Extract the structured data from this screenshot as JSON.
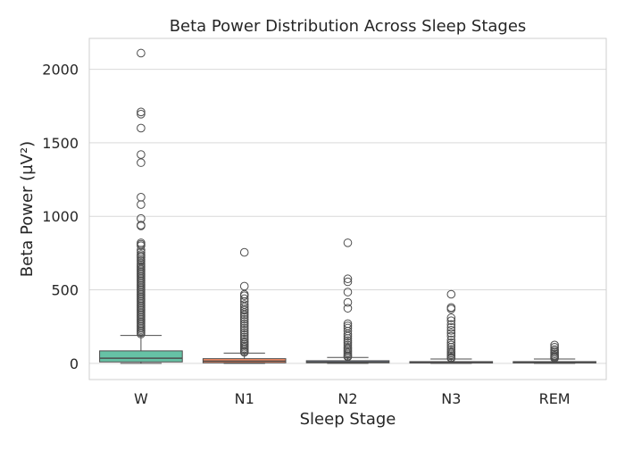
{
  "chart_data": {
    "type": "box",
    "title": "Beta Power Distribution Across Sleep Stages",
    "xlabel": "Sleep Stage",
    "ylabel": "Beta Power (µV²)",
    "ylim": [
      -110,
      2210
    ],
    "yticks": [
      0,
      500,
      1000,
      1500,
      2000
    ],
    "grid": true,
    "categories": [
      "W",
      "N1",
      "N2",
      "N3",
      "REM"
    ],
    "colors": [
      "#66c2a5",
      "#fc8d62",
      "#8da0cb",
      "#e78ac3",
      "#a6d854"
    ],
    "boxes": [
      {
        "name": "W",
        "whisker_low": 0,
        "q1": 10,
        "median": 35,
        "q3": 85,
        "whisker_high": 190,
        "outliers": [
          2110,
          1710,
          1695,
          1600,
          1420,
          1365,
          1130,
          1080,
          985,
          940,
          935,
          820,
          810,
          800,
          770,
          755,
          740,
          730,
          720,
          705,
          695,
          680,
          670,
          660,
          650,
          640,
          630,
          620,
          610,
          600,
          590,
          580,
          570,
          560,
          550,
          540,
          530,
          520,
          510,
          500,
          490,
          480,
          470,
          460,
          450,
          440,
          430,
          420,
          410,
          400,
          390,
          380,
          370,
          360,
          350,
          340,
          330,
          320,
          310,
          300,
          290,
          280,
          270,
          260,
          250,
          240,
          230,
          220,
          210,
          200
        ]
      },
      {
        "name": "N1",
        "whisker_low": 0,
        "q1": 4,
        "median": 15,
        "q3": 32,
        "whisker_high": 70,
        "outliers": [
          755,
          525,
          470,
          460,
          440,
          420,
          400,
          385,
          370,
          360,
          345,
          330,
          315,
          300,
          285,
          270,
          255,
          240,
          225,
          210,
          195,
          180,
          165,
          150,
          140,
          130,
          120,
          110,
          100,
          90,
          80,
          75
        ]
      },
      {
        "name": "N2",
        "whisker_low": 0,
        "q1": 4,
        "median": 9,
        "q3": 18,
        "whisker_high": 40,
        "outliers": [
          820,
          575,
          555,
          485,
          415,
          375,
          270,
          255,
          240,
          220,
          200,
          185,
          170,
          155,
          140,
          125,
          110,
          100,
          90,
          80,
          70,
          60,
          50,
          45
        ]
      },
      {
        "name": "N3",
        "whisker_low": 0,
        "q1": 3,
        "median": 6,
        "q3": 12,
        "whisker_high": 30,
        "outliers": [
          470,
          380,
          370,
          310,
          290,
          265,
          245,
          225,
          205,
          185,
          160,
          140,
          125,
          110,
          95,
          80,
          70,
          60,
          50,
          40,
          35
        ]
      },
      {
        "name": "REM",
        "whisker_low": 0,
        "q1": 3,
        "median": 7,
        "q3": 12,
        "whisker_high": 30,
        "outliers": [
          125,
          110,
          95,
          85,
          75,
          65,
          55,
          48,
          42,
          36
        ]
      }
    ]
  }
}
